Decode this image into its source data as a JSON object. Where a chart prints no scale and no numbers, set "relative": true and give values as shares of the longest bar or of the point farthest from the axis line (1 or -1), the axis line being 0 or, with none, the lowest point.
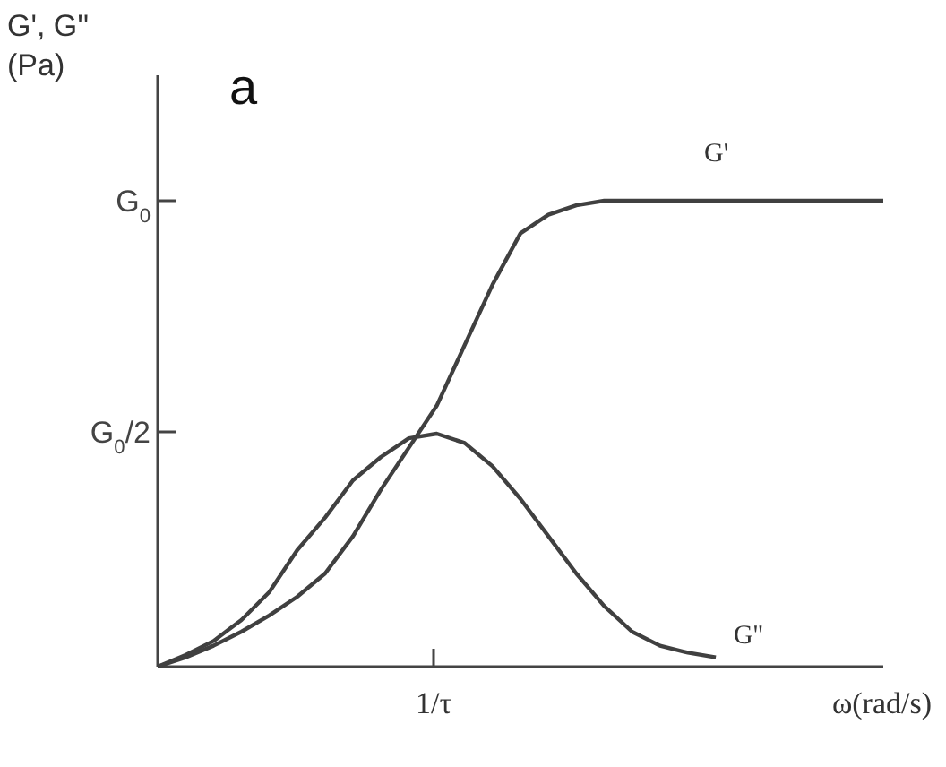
{
  "chart_data": {
    "type": "line",
    "relative": true,
    "xlabel": "ω(rad/s)",
    "ylabel": "G', G'' (Pa)",
    "annotations": [
      "a",
      "1/τ",
      "G$_{0}$/2",
      "G$_{0}$"
    ],
    "marker": "none",
    "line_style": "solid",
    "categories": [
      null,
      null,
      null,
      null,
      null,
      null,
      null,
      null,
      null,
      null,
      null,
      null,
      null,
      null,
      null,
      null,
      null,
      null,
      null,
      null,
      null,
      null,
      null,
      null,
      null,
      null,
      null
    ],
    "series": [
      {
        "name": "G'",
        "color": "#404040",
        "values": [
          0,
          0.02,
          0.045,
          0.075,
          0.11,
          0.15,
          0.2,
          0.28,
          0.38,
          0.47,
          0.56,
          0.69,
          0.82,
          0.93,
          0.97,
          0.99,
          1,
          1,
          1,
          1,
          1,
          1,
          1,
          1,
          1,
          1,
          1
        ]
      },
      {
        "name": "G''",
        "color": "#404040",
        "values": [
          0,
          0.025,
          0.055,
          0.1,
          0.16,
          0.25,
          0.32,
          0.4,
          0.45,
          0.49,
          0.5,
          0.48,
          0.43,
          0.36,
          0.28,
          0.2,
          0.13,
          0.075,
          0.045,
          0.03,
          0.02,
          null,
          null,
          null,
          null,
          null,
          null
        ]
      }
    ]
  }
}
